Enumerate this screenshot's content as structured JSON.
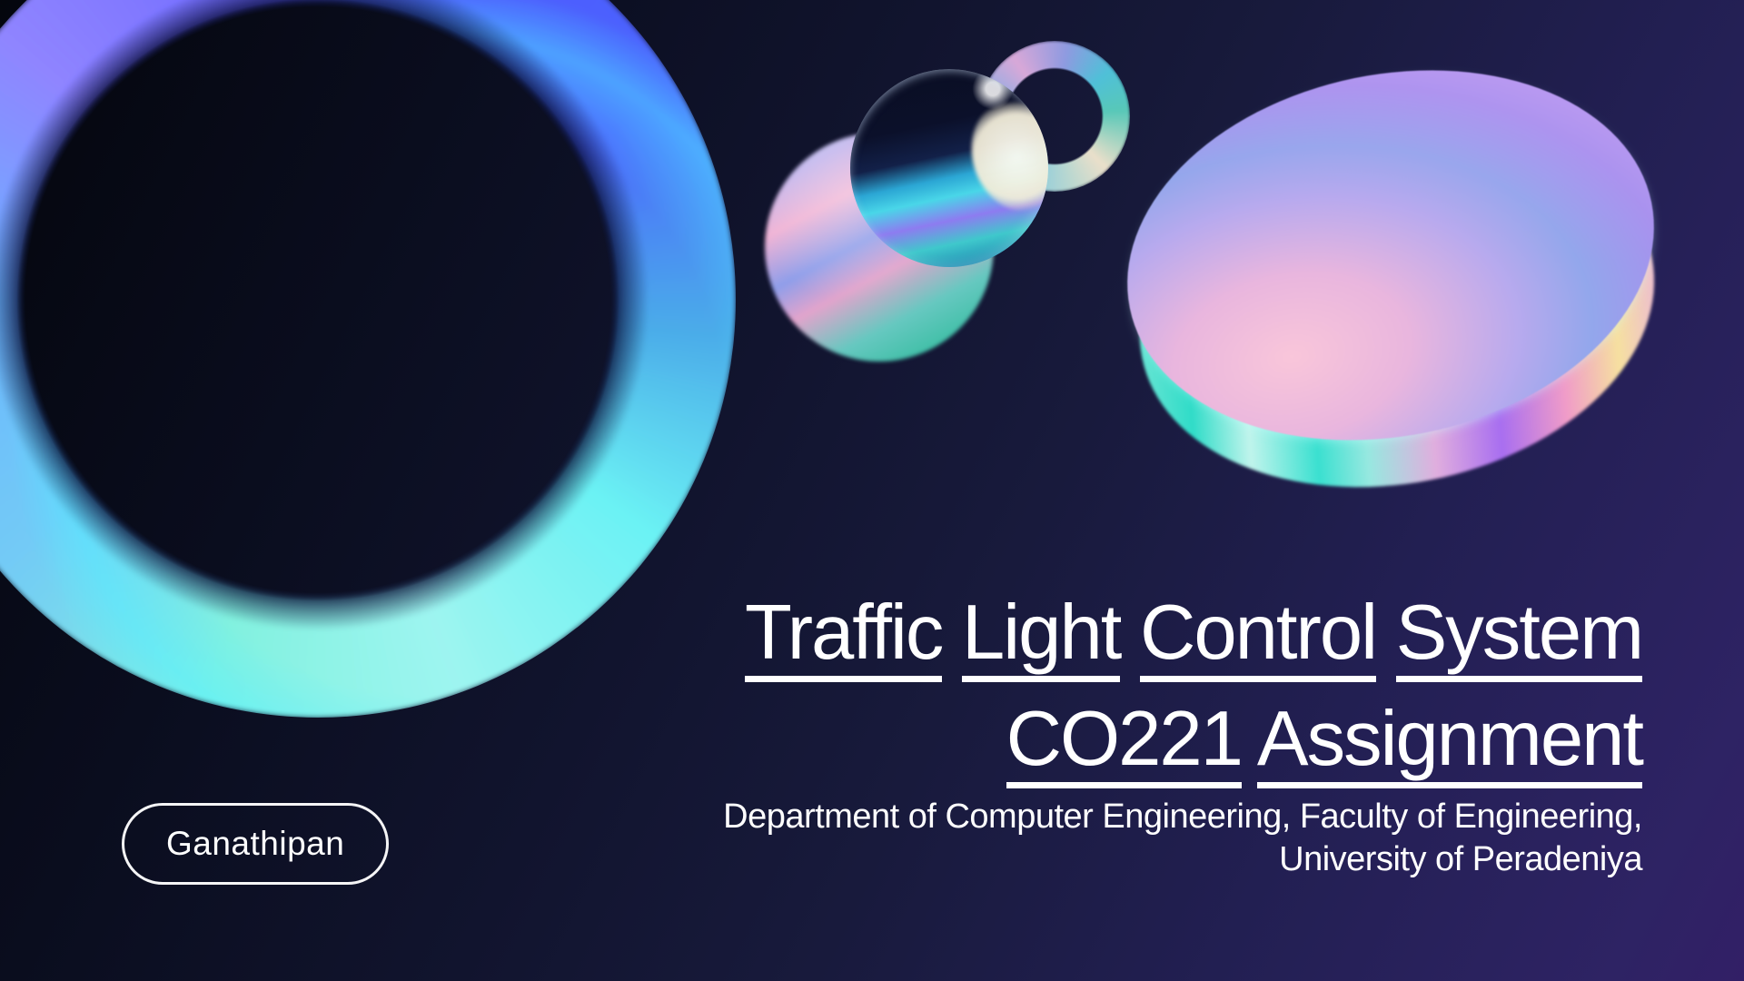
{
  "slide": {
    "title_line1": "Traffic Light Control System",
    "title_line2": "CO221 Assignment",
    "subtitle_line1": "Department of Computer Engineering, Faculty of Engineering,",
    "subtitle_line2": "University of Peradeniya",
    "badge_label": "Ganathipan"
  },
  "colors": {
    "background_top_left": "#05070f",
    "background_bottom_right": "#2e2364",
    "text": "#ffffff",
    "badge_border": "#ffffff",
    "holo_cyan": "#79eef0",
    "holo_pink": "#ffaec6",
    "holo_purple": "#8f86f6",
    "holo_blue": "#4f5ce9"
  }
}
